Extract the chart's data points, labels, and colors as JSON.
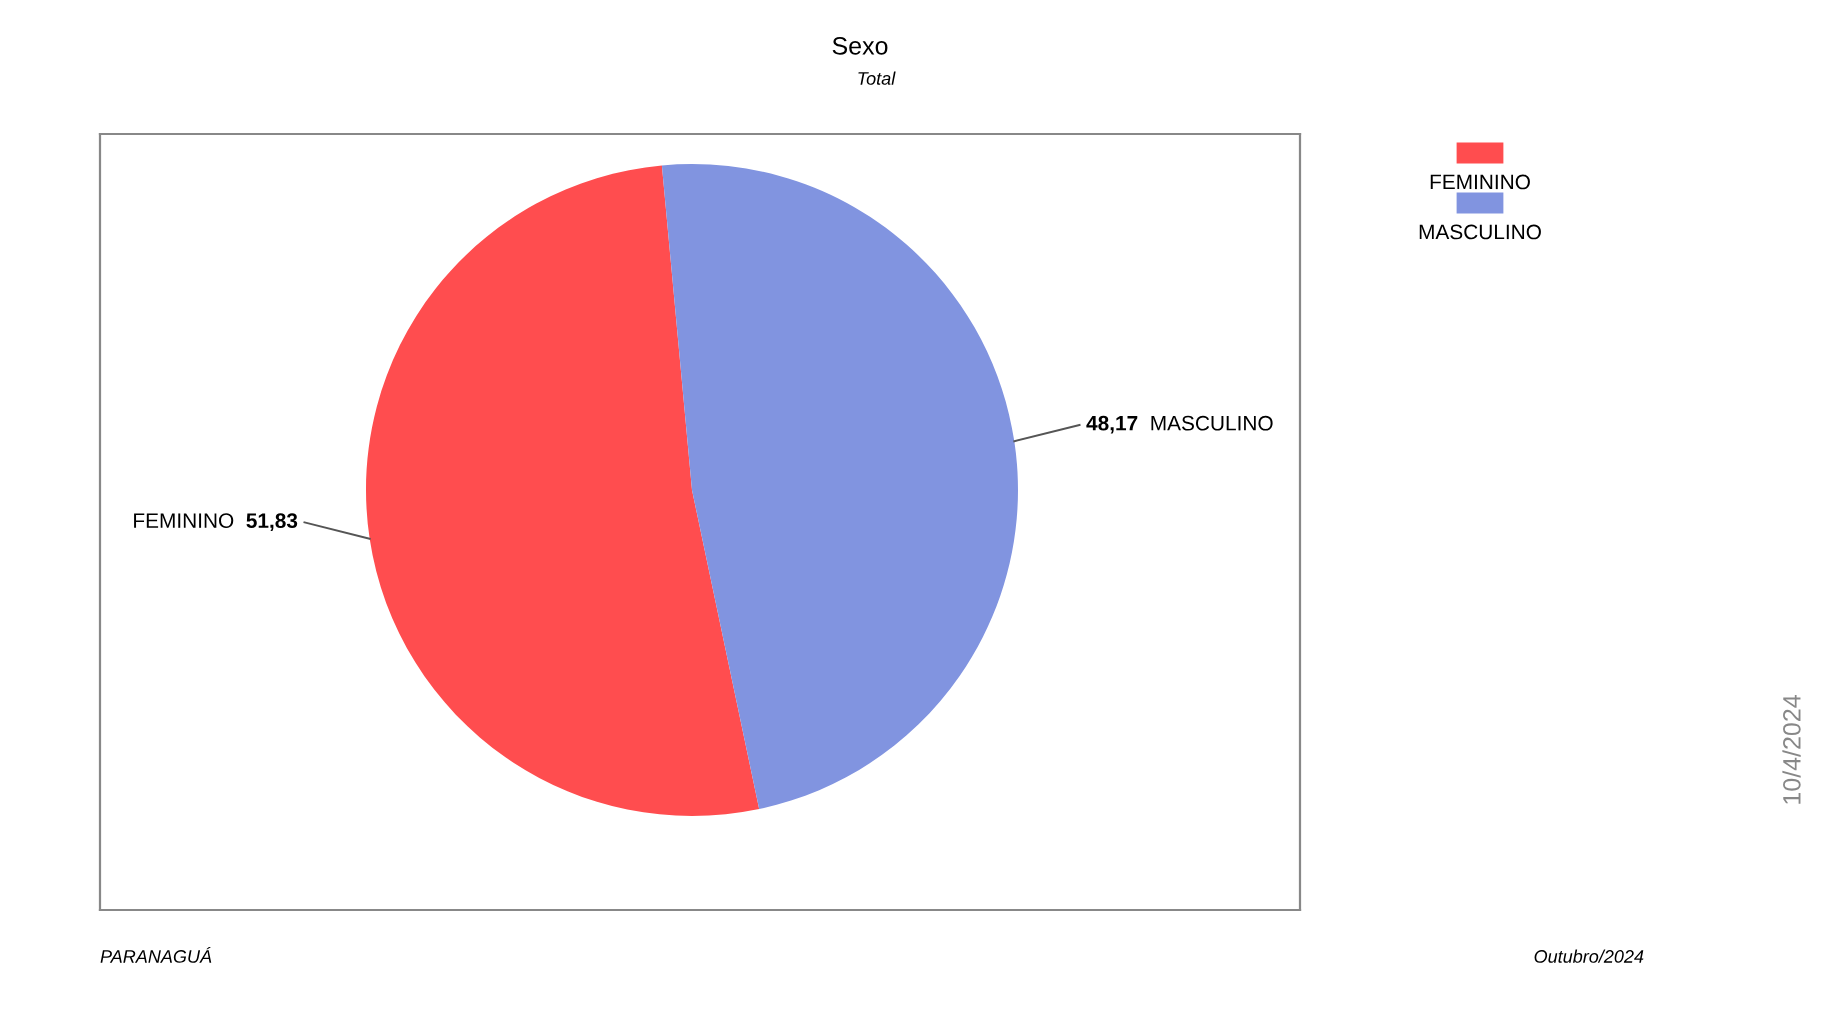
{
  "chart_data": {
    "type": "pie",
    "title": "Sexo",
    "subtitle": "Total",
    "categories": [
      "FEMININO",
      "MASCULINO"
    ],
    "values": [
      51.83,
      48.17
    ],
    "colors": [
      "#ff4d4f",
      "#8194e0"
    ],
    "value_labels": [
      "51,83",
      "48,17"
    ],
    "legend": "top right",
    "annotations": [
      "PARANAGUÁ",
      "Outubro/2024",
      "10/4/2024"
    ]
  }
}
